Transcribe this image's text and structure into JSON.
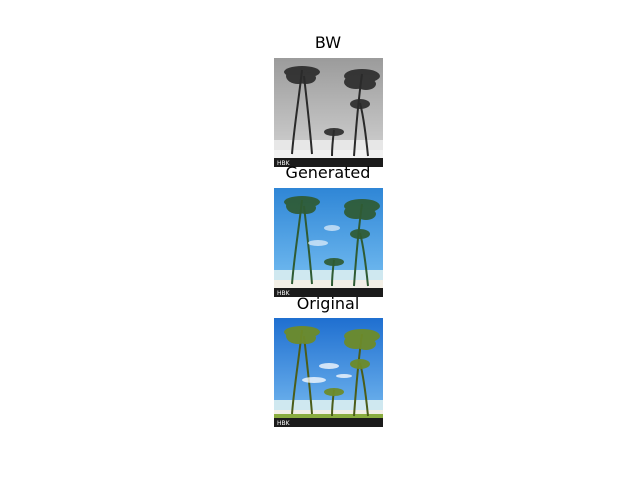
{
  "panels": [
    {
      "title": "BW",
      "tint": "bw"
    },
    {
      "title": "Generated",
      "tint": "generated"
    },
    {
      "title": "Original",
      "tint": "original"
    }
  ],
  "watermark": "HBK",
  "colors": {
    "bw_sky": "#bdbdbd",
    "gen_sky": "#4ea5e6",
    "orig_sky": "#3d93e2",
    "sea": "#cfe8f0",
    "sand": "#f2efe6",
    "palm_bw": "#2a2a2a",
    "palm_gen": "#2f5b33",
    "palm_orig": "#6d8b2a"
  }
}
